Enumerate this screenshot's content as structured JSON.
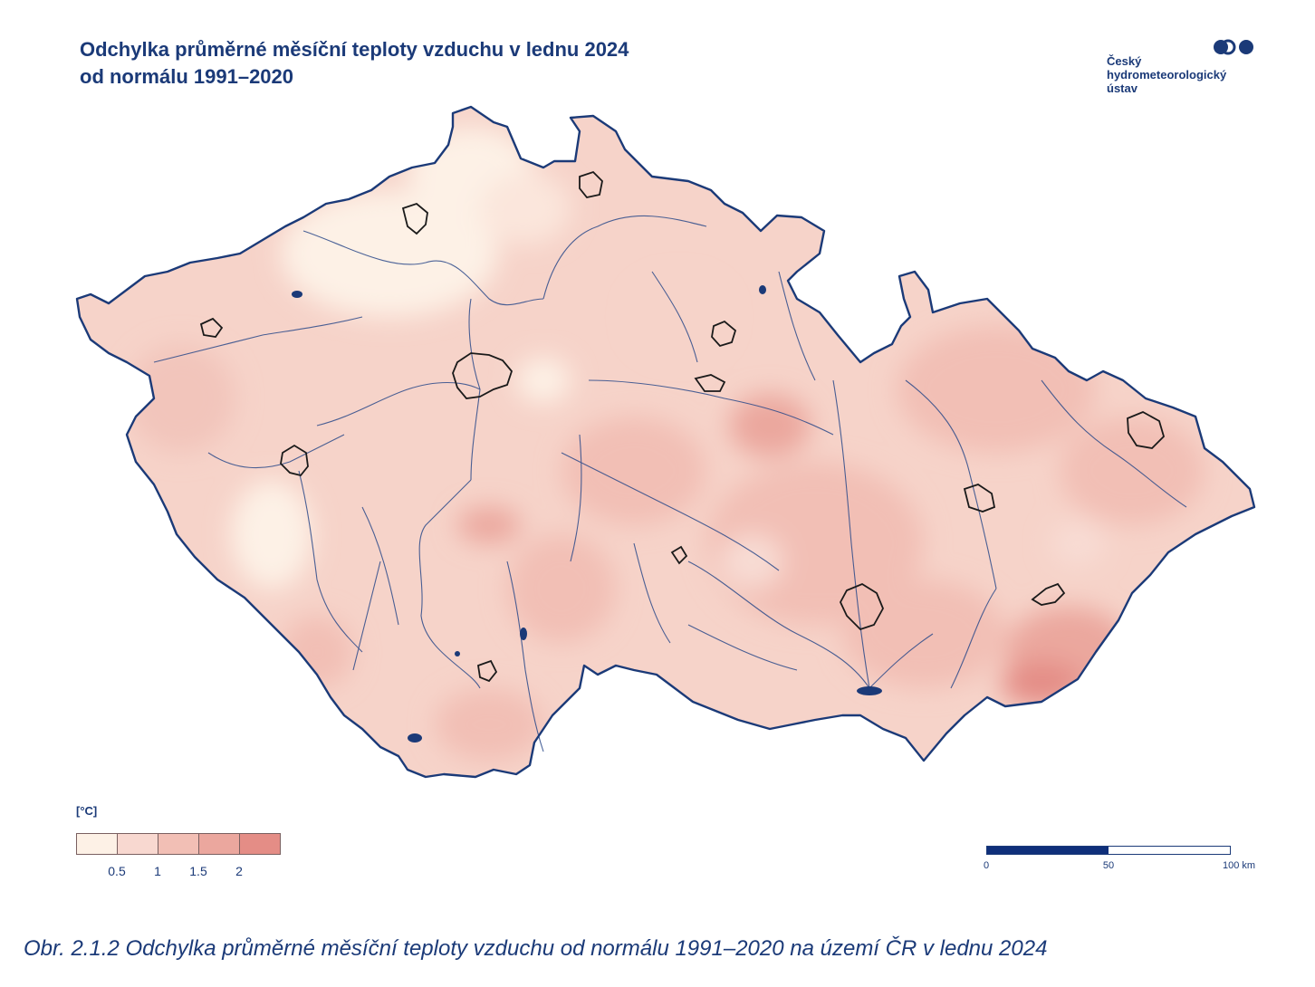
{
  "title": {
    "line1": "Odchylka průměrné měsíční teploty vzduchu v lednu 2024",
    "line2": "od normálu 1991–2020"
  },
  "logo": {
    "line1": "Český",
    "line2": "hydrometeorologický",
    "line3": "ústav",
    "color": "#1b3a78"
  },
  "legend": {
    "unit": "[°C]",
    "swatches": [
      "#fdf1e6",
      "#f8d8d0",
      "#f2bfb5",
      "#eba79e",
      "#e48d86"
    ],
    "labels": [
      "0.5",
      "1",
      "1.5",
      "2"
    ]
  },
  "scale_bar": {
    "labels": [
      "0",
      "50",
      "100 km"
    ]
  },
  "caption": "Obr. 2.1.2 Odchylka průměrné měsíční teploty vzduchu od normálu 1991–2020 na území ČR v lednu 2024",
  "colors": {
    "border": "#1b3a78",
    "rivers": "#2c4a8a",
    "base_fill": "#f6d3c9"
  }
}
